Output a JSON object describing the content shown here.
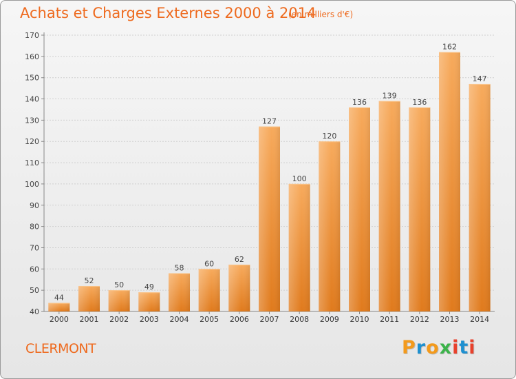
{
  "header": {
    "title": "Achats et Charges Externes 2000 à 2014",
    "unit": "(en milliers d'€)"
  },
  "footer": {
    "city": "CLERMONT",
    "brand": "Proxiti",
    "brand_letters": [
      {
        "char": "P",
        "color": "#f39a1c"
      },
      {
        "char": "r",
        "color": "#1e90d0"
      },
      {
        "char": "o",
        "color": "#f39a1c"
      },
      {
        "char": "x",
        "color": "#3bb34a"
      },
      {
        "char": "i",
        "color": "#e8412c"
      },
      {
        "char": "t",
        "color": "#1e90d0"
      },
      {
        "char": "i",
        "color": "#e8412c"
      }
    ]
  },
  "colors": {
    "accent": "#ee6a1e",
    "bar_light": "#f7a95a",
    "bar_dark": "#e07a1c"
  },
  "chart_data": {
    "type": "bar",
    "categories": [
      "2000",
      "2001",
      "2002",
      "2003",
      "2004",
      "2005",
      "2006",
      "2007",
      "2008",
      "2009",
      "2010",
      "2011",
      "2012",
      "2013",
      "2014"
    ],
    "values": [
      44,
      52,
      50,
      49,
      58,
      60,
      62,
      127,
      100,
      120,
      136,
      139,
      136,
      162,
      147
    ],
    "ylim": [
      40,
      170
    ],
    "yticks": [
      40,
      50,
      60,
      70,
      80,
      90,
      100,
      110,
      120,
      130,
      140,
      150,
      160,
      170
    ],
    "grid": "horizontal",
    "title": "Achats et Charges Externes 2000 à 2014",
    "xlabel": "",
    "ylabel": ""
  }
}
